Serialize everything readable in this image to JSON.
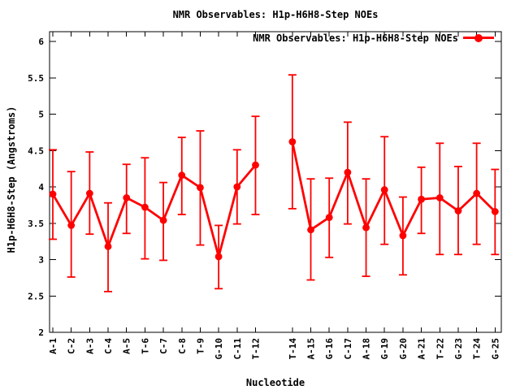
{
  "colors": {
    "background": "#ffffff",
    "axis": "#000000",
    "series": "#ff0000"
  },
  "chart_data": {
    "type": "line",
    "title": "NMR Observables: H1p-H6H8-Step NOEs",
    "xlabel": "Nucleotide",
    "ylabel": "H1p-H6H8-Step (Angstroms)",
    "ylim": [
      2,
      6.13
    ],
    "grid": false,
    "marker": "filled-circle",
    "error_bars": true,
    "legend_position": "top-right-inside",
    "yticks": [
      {
        "v": 2,
        "label": "2"
      },
      {
        "v": 2.5,
        "label": "2.5"
      },
      {
        "v": 3,
        "label": "3"
      },
      {
        "v": 3.5,
        "label": "3.5"
      },
      {
        "v": 4,
        "label": "4"
      },
      {
        "v": 4.5,
        "label": "4.5"
      },
      {
        "v": 5,
        "label": "5"
      },
      {
        "v": 5.5,
        "label": "5.5"
      },
      {
        "v": 6,
        "label": "6"
      }
    ],
    "missing_x": [
      13
    ],
    "series": [
      {
        "name": "NMR Observables: H1p-H6H8-Step NOEs",
        "color": "#ff0000",
        "points": [
          {
            "label": "A-1",
            "x": 1,
            "y": 3.9,
            "ylow": 3.28,
            "yhigh": 4.51
          },
          {
            "label": "C-2",
            "x": 2,
            "y": 3.47,
            "ylow": 2.76,
            "yhigh": 4.21
          },
          {
            "label": "A-3",
            "x": 3,
            "y": 3.91,
            "ylow": 3.35,
            "yhigh": 4.48
          },
          {
            "label": "C-4",
            "x": 4,
            "y": 3.18,
            "ylow": 2.56,
            "yhigh": 3.78
          },
          {
            "label": "A-5",
            "x": 5,
            "y": 3.85,
            "ylow": 3.36,
            "yhigh": 4.31
          },
          {
            "label": "T-6",
            "x": 6,
            "y": 3.72,
            "ylow": 3.01,
            "yhigh": 4.4
          },
          {
            "label": "C-7",
            "x": 7,
            "y": 3.54,
            "ylow": 2.99,
            "yhigh": 4.06
          },
          {
            "label": "C-8",
            "x": 8,
            "y": 4.16,
            "ylow": 3.62,
            "yhigh": 4.68
          },
          {
            "label": "T-9",
            "x": 9,
            "y": 3.99,
            "ylow": 3.2,
            "yhigh": 4.77
          },
          {
            "label": "G-10",
            "x": 10,
            "y": 3.04,
            "ylow": 2.6,
            "yhigh": 3.47
          },
          {
            "label": "C-11",
            "x": 11,
            "y": 4.0,
            "ylow": 3.49,
            "yhigh": 4.51
          },
          {
            "label": "T-12",
            "x": 12,
            "y": 4.3,
            "ylow": 3.62,
            "yhigh": 4.97
          },
          {
            "label": "T-14",
            "x": 14,
            "y": 4.62,
            "ylow": 3.7,
            "yhigh": 5.54
          },
          {
            "label": "A-15",
            "x": 15,
            "y": 3.41,
            "ylow": 2.72,
            "yhigh": 4.11
          },
          {
            "label": "G-16",
            "x": 16,
            "y": 3.58,
            "ylow": 3.03,
            "yhigh": 4.12
          },
          {
            "label": "C-17",
            "x": 17,
            "y": 4.2,
            "ylow": 3.49,
            "yhigh": 4.89
          },
          {
            "label": "A-18",
            "x": 18,
            "y": 3.44,
            "ylow": 2.77,
            "yhigh": 4.11
          },
          {
            "label": "G-19",
            "x": 19,
            "y": 3.96,
            "ylow": 3.21,
            "yhigh": 4.69
          },
          {
            "label": "G-20",
            "x": 20,
            "y": 3.33,
            "ylow": 2.79,
            "yhigh": 3.86
          },
          {
            "label": "A-21",
            "x": 21,
            "y": 3.83,
            "ylow": 3.36,
            "yhigh": 4.27
          },
          {
            "label": "T-22",
            "x": 22,
            "y": 3.85,
            "ylow": 3.07,
            "yhigh": 4.6
          },
          {
            "label": "G-23",
            "x": 23,
            "y": 3.67,
            "ylow": 3.07,
            "yhigh": 4.28
          },
          {
            "label": "T-24",
            "x": 24,
            "y": 3.91,
            "ylow": 3.21,
            "yhigh": 4.6
          },
          {
            "label": "G-25",
            "x": 25,
            "y": 3.66,
            "ylow": 3.07,
            "yhigh": 4.24
          }
        ]
      }
    ]
  }
}
